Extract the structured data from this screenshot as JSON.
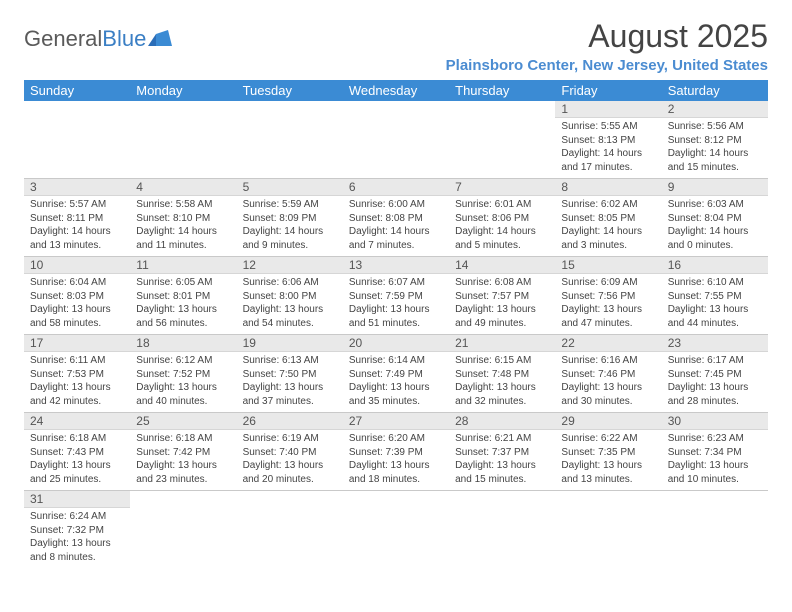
{
  "logo": {
    "text1": "General",
    "text2": "Blue"
  },
  "colors": {
    "header_bg": "#3b8bd4",
    "header_text": "#ffffff",
    "daynum_bg": "#e9e9e9",
    "location_color": "#4b8cd1",
    "title_color": "#444444",
    "logo_gray": "#5a5a5a",
    "logo_blue": "#3b7fc4"
  },
  "title": "August 2025",
  "location": "Plainsboro Center, New Jersey, United States",
  "weekdays": [
    "Sunday",
    "Monday",
    "Tuesday",
    "Wednesday",
    "Thursday",
    "Friday",
    "Saturday"
  ],
  "grid": [
    [
      null,
      null,
      null,
      null,
      null,
      {
        "n": "1",
        "sr": "5:55 AM",
        "ss": "8:13 PM",
        "dl": "14 hours and 17 minutes."
      },
      {
        "n": "2",
        "sr": "5:56 AM",
        "ss": "8:12 PM",
        "dl": "14 hours and 15 minutes."
      }
    ],
    [
      {
        "n": "3",
        "sr": "5:57 AM",
        "ss": "8:11 PM",
        "dl": "14 hours and 13 minutes."
      },
      {
        "n": "4",
        "sr": "5:58 AM",
        "ss": "8:10 PM",
        "dl": "14 hours and 11 minutes."
      },
      {
        "n": "5",
        "sr": "5:59 AM",
        "ss": "8:09 PM",
        "dl": "14 hours and 9 minutes."
      },
      {
        "n": "6",
        "sr": "6:00 AM",
        "ss": "8:08 PM",
        "dl": "14 hours and 7 minutes."
      },
      {
        "n": "7",
        "sr": "6:01 AM",
        "ss": "8:06 PM",
        "dl": "14 hours and 5 minutes."
      },
      {
        "n": "8",
        "sr": "6:02 AM",
        "ss": "8:05 PM",
        "dl": "14 hours and 3 minutes."
      },
      {
        "n": "9",
        "sr": "6:03 AM",
        "ss": "8:04 PM",
        "dl": "14 hours and 0 minutes."
      }
    ],
    [
      {
        "n": "10",
        "sr": "6:04 AM",
        "ss": "8:03 PM",
        "dl": "13 hours and 58 minutes."
      },
      {
        "n": "11",
        "sr": "6:05 AM",
        "ss": "8:01 PM",
        "dl": "13 hours and 56 minutes."
      },
      {
        "n": "12",
        "sr": "6:06 AM",
        "ss": "8:00 PM",
        "dl": "13 hours and 54 minutes."
      },
      {
        "n": "13",
        "sr": "6:07 AM",
        "ss": "7:59 PM",
        "dl": "13 hours and 51 minutes."
      },
      {
        "n": "14",
        "sr": "6:08 AM",
        "ss": "7:57 PM",
        "dl": "13 hours and 49 minutes."
      },
      {
        "n": "15",
        "sr": "6:09 AM",
        "ss": "7:56 PM",
        "dl": "13 hours and 47 minutes."
      },
      {
        "n": "16",
        "sr": "6:10 AM",
        "ss": "7:55 PM",
        "dl": "13 hours and 44 minutes."
      }
    ],
    [
      {
        "n": "17",
        "sr": "6:11 AM",
        "ss": "7:53 PM",
        "dl": "13 hours and 42 minutes."
      },
      {
        "n": "18",
        "sr": "6:12 AM",
        "ss": "7:52 PM",
        "dl": "13 hours and 40 minutes."
      },
      {
        "n": "19",
        "sr": "6:13 AM",
        "ss": "7:50 PM",
        "dl": "13 hours and 37 minutes."
      },
      {
        "n": "20",
        "sr": "6:14 AM",
        "ss": "7:49 PM",
        "dl": "13 hours and 35 minutes."
      },
      {
        "n": "21",
        "sr": "6:15 AM",
        "ss": "7:48 PM",
        "dl": "13 hours and 32 minutes."
      },
      {
        "n": "22",
        "sr": "6:16 AM",
        "ss": "7:46 PM",
        "dl": "13 hours and 30 minutes."
      },
      {
        "n": "23",
        "sr": "6:17 AM",
        "ss": "7:45 PM",
        "dl": "13 hours and 28 minutes."
      }
    ],
    [
      {
        "n": "24",
        "sr": "6:18 AM",
        "ss": "7:43 PM",
        "dl": "13 hours and 25 minutes."
      },
      {
        "n": "25",
        "sr": "6:18 AM",
        "ss": "7:42 PM",
        "dl": "13 hours and 23 minutes."
      },
      {
        "n": "26",
        "sr": "6:19 AM",
        "ss": "7:40 PM",
        "dl": "13 hours and 20 minutes."
      },
      {
        "n": "27",
        "sr": "6:20 AM",
        "ss": "7:39 PM",
        "dl": "13 hours and 18 minutes."
      },
      {
        "n": "28",
        "sr": "6:21 AM",
        "ss": "7:37 PM",
        "dl": "13 hours and 15 minutes."
      },
      {
        "n": "29",
        "sr": "6:22 AM",
        "ss": "7:35 PM",
        "dl": "13 hours and 13 minutes."
      },
      {
        "n": "30",
        "sr": "6:23 AM",
        "ss": "7:34 PM",
        "dl": "13 hours and 10 minutes."
      }
    ],
    [
      {
        "n": "31",
        "sr": "6:24 AM",
        "ss": "7:32 PM",
        "dl": "13 hours and 8 minutes."
      },
      null,
      null,
      null,
      null,
      null,
      null
    ]
  ],
  "labels": {
    "sunrise": "Sunrise:",
    "sunset": "Sunset:",
    "daylight": "Daylight:"
  }
}
